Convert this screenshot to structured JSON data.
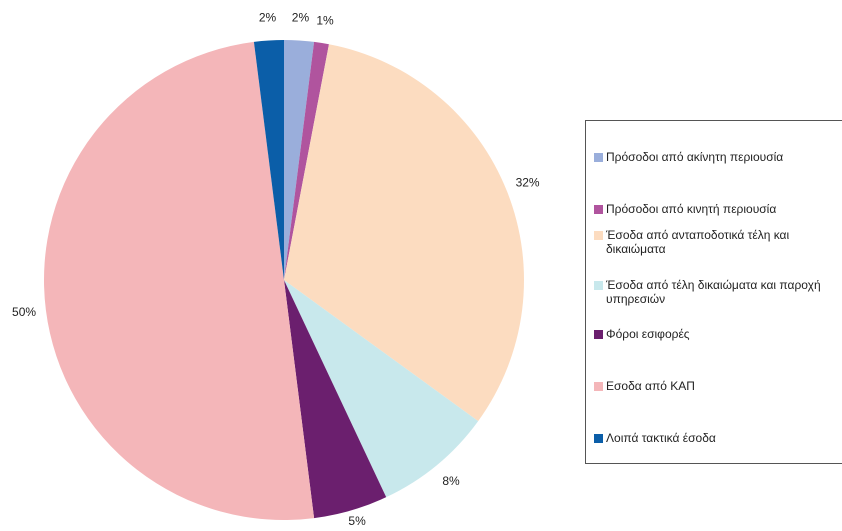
{
  "chart_data": {
    "type": "pie",
    "categories": [
      "Πρόσοδοι από  ακίνητη περιουσία",
      "Πρόσοδοι από κινητή περιουσία",
      "Έσοδα από ανταποδοτικά τέλη και δικαιώματα",
      "Έσοδα από τέλη δικαιώματα  και παροχή υπηρεσιών",
      "Φόροι εσιφορές",
      "Εσοδα από ΚΑΠ",
      "Λοιπά τακτικά έσοδα"
    ],
    "values": [
      2,
      1,
      32,
      8,
      5,
      50,
      2
    ],
    "value_labels": [
      "2%",
      "1%",
      "32%",
      "8%",
      "5%",
      "50%",
      "2%"
    ],
    "colors": [
      "#9aaedb",
      "#b0549e",
      "#fcdcc0",
      "#c8e8ec",
      "#6b1f6e",
      "#f4b6b9",
      "#0b5ea8"
    ],
    "legend": "right"
  }
}
